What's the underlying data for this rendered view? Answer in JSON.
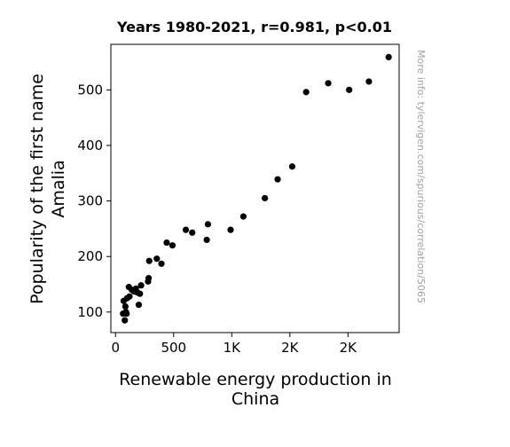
{
  "chart_data": {
    "type": "scatter",
    "title": "Years 1980-2021, r=0.981, p<0.01",
    "xlabel": [
      "Renewable energy production in",
      "China"
    ],
    "ylabel": [
      "Popularity of the first name",
      "Amalia"
    ],
    "watermark": "More info: tylervigen.com/spurious/correlation/5065",
    "xlim": [
      -40,
      2440
    ],
    "ylim": [
      63,
      582
    ],
    "x_ticks": [
      {
        "value": 0,
        "label": "0"
      },
      {
        "value": 500,
        "label": "500"
      },
      {
        "value": 1000,
        "label": "1K"
      },
      {
        "value": 1500,
        "label": "2K"
      },
      {
        "value": 2000,
        "label": "2K"
      }
    ],
    "y_ticks": [
      {
        "value": 100,
        "label": "100"
      },
      {
        "value": 200,
        "label": "200"
      },
      {
        "value": 300,
        "label": "300"
      },
      {
        "value": 400,
        "label": "400"
      },
      {
        "value": 500,
        "label": "500"
      }
    ],
    "grid": false,
    "marker_color": "#000000",
    "points": [
      {
        "x": 65,
        "y": 97
      },
      {
        "x": 70,
        "y": 120
      },
      {
        "x": 80,
        "y": 85
      },
      {
        "x": 85,
        "y": 110
      },
      {
        "x": 90,
        "y": 100
      },
      {
        "x": 95,
        "y": 97
      },
      {
        "x": 100,
        "y": 125
      },
      {
        "x": 115,
        "y": 145
      },
      {
        "x": 120,
        "y": 128
      },
      {
        "x": 140,
        "y": 140
      },
      {
        "x": 160,
        "y": 137
      },
      {
        "x": 175,
        "y": 142
      },
      {
        "x": 190,
        "y": 135
      },
      {
        "x": 200,
        "y": 113
      },
      {
        "x": 210,
        "y": 133
      },
      {
        "x": 220,
        "y": 148
      },
      {
        "x": 280,
        "y": 155
      },
      {
        "x": 285,
        "y": 161
      },
      {
        "x": 290,
        "y": 192
      },
      {
        "x": 355,
        "y": 196
      },
      {
        "x": 395,
        "y": 187
      },
      {
        "x": 440,
        "y": 225
      },
      {
        "x": 490,
        "y": 220
      },
      {
        "x": 605,
        "y": 248
      },
      {
        "x": 660,
        "y": 243
      },
      {
        "x": 785,
        "y": 230
      },
      {
        "x": 795,
        "y": 258
      },
      {
        "x": 990,
        "y": 248
      },
      {
        "x": 1100,
        "y": 272
      },
      {
        "x": 1285,
        "y": 305
      },
      {
        "x": 1395,
        "y": 339
      },
      {
        "x": 1520,
        "y": 362
      },
      {
        "x": 1640,
        "y": 496
      },
      {
        "x": 1830,
        "y": 512
      },
      {
        "x": 2010,
        "y": 500
      },
      {
        "x": 2180,
        "y": 515
      },
      {
        "x": 2350,
        "y": 559
      }
    ]
  }
}
